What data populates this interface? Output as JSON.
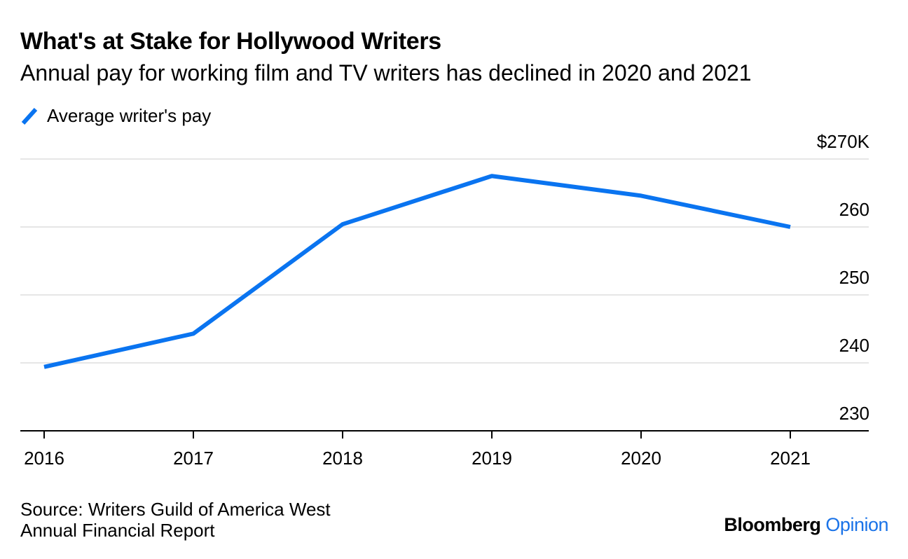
{
  "title": "What's at Stake for Hollywood Writers",
  "subtitle": "Annual pay for working film and TV writers has declined in 2020 and 2021",
  "colors": {
    "series": "#0a74f0",
    "grid": "#e6e6e6",
    "axis": "#000000",
    "opinion": "#1a73e8"
  },
  "source": {
    "line1": "Source: Writers Guild of America West",
    "line2": "Annual Financial Report"
  },
  "brand": {
    "name": "Bloomberg",
    "section": "Opinion"
  },
  "chart_data": {
    "type": "line",
    "title": "What's at Stake for Hollywood Writers",
    "subtitle": "Annual pay for working film and TV writers has declined in 2020 and 2021",
    "categories": [
      "2016",
      "2017",
      "2018",
      "2019",
      "2020",
      "2021"
    ],
    "series": [
      {
        "name": "Average writer's pay",
        "values": [
          239.4,
          244.3,
          260.4,
          267.5,
          264.6,
          260.0
        ]
      }
    ],
    "ylim": [
      230,
      270
    ],
    "yticks": [
      230,
      240,
      250,
      260,
      270
    ],
    "ytick_labels": [
      "230",
      "240",
      "250",
      "260",
      "$270K"
    ],
    "xlabel": "",
    "ylabel": "",
    "grid": true,
    "legend": "top-left",
    "y_axis_side": "right"
  }
}
